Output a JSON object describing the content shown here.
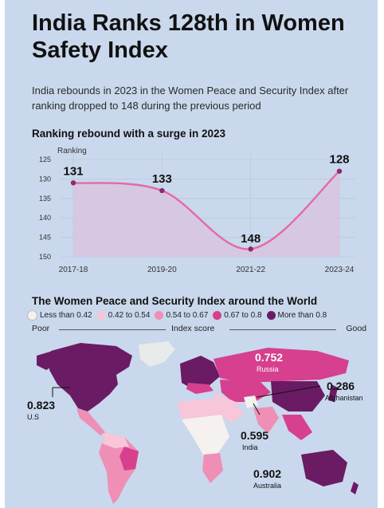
{
  "header": {
    "title": "India Ranks 128th in Women Safety Index",
    "subtitle": "India rebounds in 2023 in the Women Peace and Security Index after ranking dropped to 148 during the previous period"
  },
  "chart_section": {
    "heading": "Ranking rebound with a surge in 2023"
  },
  "chart_data": [
    {
      "type": "line",
      "title": "Ranking rebound with a surge in 2023",
      "ylabel": "Ranking",
      "xlabel": "",
      "y_inverted": true,
      "ylim": [
        125,
        150
      ],
      "yticks": [
        "125",
        "130",
        "135",
        "140",
        "145",
        "150"
      ],
      "grid": true,
      "categories": [
        "2017-18",
        "2019-20",
        "2021-22",
        "2023-24"
      ],
      "series": [
        {
          "values": [
            131,
            133,
            148,
            128
          ],
          "labels": [
            "131",
            "133",
            "148",
            "128"
          ]
        }
      ],
      "colors": {
        "line": "#e46aa7",
        "point": "#8a2a73",
        "fill": "#d8c6e0"
      }
    },
    {
      "type": "choropleth",
      "title": "The Women Peace and Security Index around the World",
      "legend": [
        {
          "label": "Less than 0.42",
          "color": "#f4f1ee"
        },
        {
          "label": "0.42 to 0.54",
          "color": "#f7c6d9"
        },
        {
          "label": "0.54 to 0.67",
          "color": "#ef8fb6"
        },
        {
          "label": "0.67 to 0.8",
          "color": "#d6408e"
        },
        {
          "label": "More than 0.8",
          "color": "#6a1b63"
        }
      ],
      "scale": {
        "low": "Poor",
        "mid": "Index score",
        "high": "Good"
      },
      "callouts": [
        {
          "country": "Russia",
          "value": "0.752"
        },
        {
          "country": "Afghanistan",
          "value": "0.286"
        },
        {
          "country": "U.S",
          "value": "0.823"
        },
        {
          "country": "India",
          "value": "0.595"
        },
        {
          "country": "Australia",
          "value": "0.902"
        }
      ]
    }
  ],
  "map_section": {
    "heading": "The Women Peace and Security Index around the World"
  }
}
